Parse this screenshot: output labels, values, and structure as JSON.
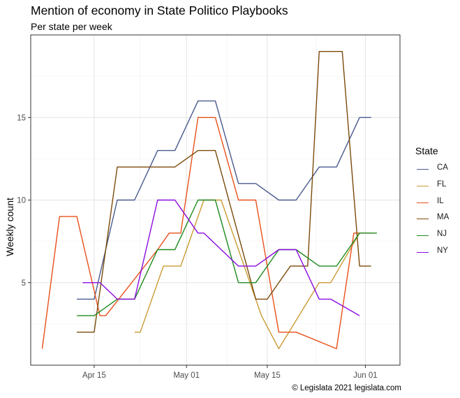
{
  "title": "Mention of economy in State Politico Playbooks",
  "subtitle": "Per state per week",
  "caption": "© Legislata 2021 legislata.com",
  "legend": {
    "title": "State",
    "items": [
      {
        "label": "CA",
        "color": "#4a5a8e"
      },
      {
        "label": "FL",
        "color": "#c99b34"
      },
      {
        "label": "IL",
        "color": "#e8501b"
      },
      {
        "label": "MA",
        "color": "#7a4a0a"
      },
      {
        "label": "NJ",
        "color": "#1e8a1e"
      },
      {
        "label": "NY",
        "color": "#8b0be0"
      }
    ]
  },
  "chart_data": {
    "type": "line",
    "title": "Mention of economy in State Politico Playbooks",
    "subtitle": "Per state per week",
    "xlabel": "",
    "ylabel": "Weekly count",
    "x_ticks": [
      "Apr 15",
      "May 01",
      "May 15",
      "Jun 01"
    ],
    "x_tick_dates": [
      "2021-04-15",
      "2021-05-01",
      "2021-05-15",
      "2021-06-01"
    ],
    "y_ticks": [
      5,
      10,
      15
    ],
    "xlim": [
      "2021-04-04",
      "2021-06-07"
    ],
    "ylim": [
      0,
      20
    ],
    "grid": true,
    "legend_position": "right",
    "series": [
      {
        "name": "CA",
        "color": "#4a5a8e",
        "points": [
          [
            "2021-04-12",
            4
          ],
          [
            "2021-04-15",
            4
          ],
          [
            "2021-04-19",
            10
          ],
          [
            "2021-04-22",
            10
          ],
          [
            "2021-04-26",
            13
          ],
          [
            "2021-04-29",
            13
          ],
          [
            "2021-05-03",
            16
          ],
          [
            "2021-05-06",
            16
          ],
          [
            "2021-05-10",
            11
          ],
          [
            "2021-05-13",
            11
          ],
          [
            "2021-05-17",
            10
          ],
          [
            "2021-05-20",
            10
          ],
          [
            "2021-05-24",
            12
          ],
          [
            "2021-05-27",
            12
          ],
          [
            "2021-05-31",
            15
          ],
          [
            "2021-06-02",
            15
          ]
        ]
      },
      {
        "name": "FL",
        "color": "#c99b34",
        "points": [
          [
            "2021-04-22",
            2
          ],
          [
            "2021-04-23",
            2
          ],
          [
            "2021-04-27",
            6
          ],
          [
            "2021-04-30",
            6
          ],
          [
            "2021-05-04",
            10
          ],
          [
            "2021-05-07",
            10
          ],
          [
            "2021-05-14",
            3
          ],
          [
            "2021-05-17",
            1
          ],
          [
            "2021-05-24",
            5
          ],
          [
            "2021-05-26",
            5
          ],
          [
            "2021-05-31",
            8
          ]
        ]
      },
      {
        "name": "IL",
        "color": "#e8501b",
        "points": [
          [
            "2021-04-06",
            1
          ],
          [
            "2021-04-09",
            9
          ],
          [
            "2021-04-12",
            9
          ],
          [
            "2021-04-16",
            3
          ],
          [
            "2021-04-17",
            3
          ],
          [
            "2021-04-26",
            7
          ],
          [
            "2021-04-28",
            8
          ],
          [
            "2021-04-30",
            8
          ],
          [
            "2021-05-03",
            15
          ],
          [
            "2021-05-06",
            15
          ],
          [
            "2021-05-10",
            10
          ],
          [
            "2021-05-13",
            10
          ],
          [
            "2021-05-17",
            2
          ],
          [
            "2021-05-20",
            2
          ],
          [
            "2021-05-27",
            1
          ],
          [
            "2021-05-30",
            8
          ],
          [
            "2021-06-02",
            8
          ]
        ]
      },
      {
        "name": "MA",
        "color": "#7a4a0a",
        "points": [
          [
            "2021-04-12",
            2
          ],
          [
            "2021-04-15",
            2
          ],
          [
            "2021-04-19",
            12
          ],
          [
            "2021-04-29",
            12
          ],
          [
            "2021-05-03",
            13
          ],
          [
            "2021-05-06",
            13
          ],
          [
            "2021-05-13",
            4
          ],
          [
            "2021-05-15",
            4
          ],
          [
            "2021-05-19",
            6
          ],
          [
            "2021-05-22",
            6
          ],
          [
            "2021-05-24",
            19
          ],
          [
            "2021-05-28",
            19
          ],
          [
            "2021-05-31",
            6
          ],
          [
            "2021-06-02",
            6
          ]
        ]
      },
      {
        "name": "NJ",
        "color": "#1e8a1e",
        "points": [
          [
            "2021-04-12",
            3
          ],
          [
            "2021-04-15",
            3
          ],
          [
            "2021-04-19",
            4
          ],
          [
            "2021-04-22",
            4
          ],
          [
            "2021-04-26",
            7
          ],
          [
            "2021-04-29",
            7
          ],
          [
            "2021-05-03",
            10
          ],
          [
            "2021-05-06",
            10
          ],
          [
            "2021-05-10",
            5
          ],
          [
            "2021-05-13",
            5
          ],
          [
            "2021-05-17",
            7
          ],
          [
            "2021-05-20",
            7
          ],
          [
            "2021-05-24",
            6
          ],
          [
            "2021-05-27",
            6
          ],
          [
            "2021-05-31",
            8
          ],
          [
            "2021-06-03",
            8
          ]
        ]
      },
      {
        "name": "NY",
        "color": "#8b0be0",
        "points": [
          [
            "2021-04-13",
            5
          ],
          [
            "2021-04-16",
            5
          ],
          [
            "2021-04-19",
            4
          ],
          [
            "2021-04-22",
            4
          ],
          [
            "2021-04-26",
            10
          ],
          [
            "2021-04-29",
            10
          ],
          [
            "2021-05-03",
            8
          ],
          [
            "2021-05-04",
            8
          ],
          [
            "2021-05-10",
            6
          ],
          [
            "2021-05-13",
            6
          ],
          [
            "2021-05-17",
            7
          ],
          [
            "2021-05-20",
            7
          ],
          [
            "2021-05-24",
            4
          ],
          [
            "2021-05-26",
            4
          ],
          [
            "2021-05-31",
            3
          ]
        ]
      }
    ]
  }
}
